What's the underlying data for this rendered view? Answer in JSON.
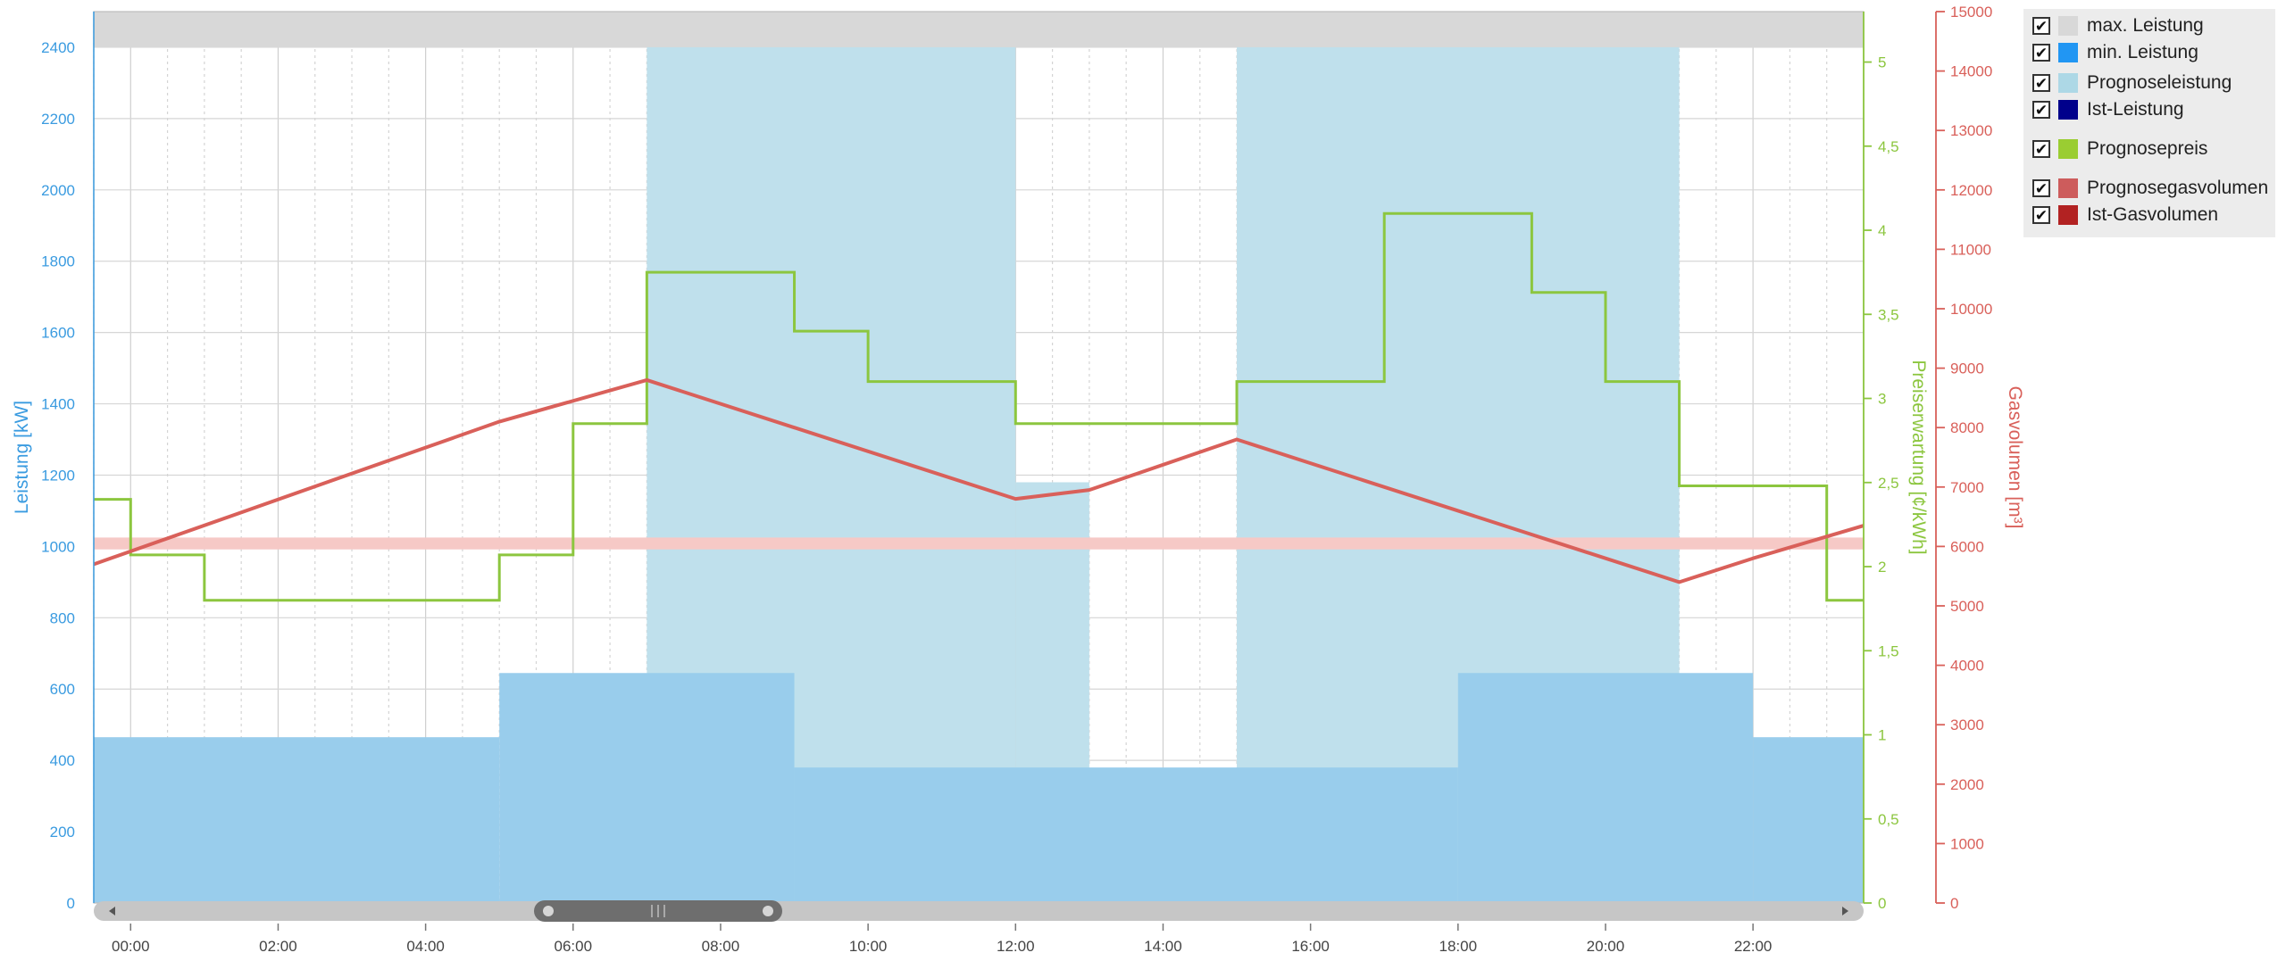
{
  "chart_data": {
    "type": "area",
    "x_ticks": [
      "00:00",
      "02:00",
      "04:00",
      "06:00",
      "08:00",
      "10:00",
      "12:00",
      "14:00",
      "16:00",
      "18:00",
      "20:00",
      "22:00"
    ],
    "x_range_hours": [
      -0.5,
      23.5
    ],
    "axes": {
      "power": {
        "label": "Leistung [kW]",
        "range": [
          0,
          2500
        ],
        "ticks": [
          "0",
          "200",
          "400",
          "600",
          "800",
          "1000",
          "1200",
          "1400",
          "1600",
          "1800",
          "2000",
          "2200",
          "2400"
        ],
        "tick_values": [
          0,
          200,
          400,
          600,
          800,
          1000,
          1200,
          1400,
          1600,
          1800,
          2000,
          2200,
          2400
        ],
        "color": "#3a9be0"
      },
      "price": {
        "label": "Preiserwartung [¢/kWh]",
        "range": [
          0,
          5.3
        ],
        "ticks": [
          "0",
          "0,5",
          "1",
          "1,5",
          "2",
          "2,5",
          "3",
          "3,5",
          "4",
          "4,5",
          "5"
        ],
        "tick_values": [
          0,
          0.5,
          1,
          1.5,
          2,
          2.5,
          3,
          3.5,
          4,
          4.5,
          5
        ],
        "color": "#8cc63f"
      },
      "gas": {
        "label": "Gasvolumen [m³]",
        "range": [
          0,
          15000
        ],
        "ticks": [
          "0",
          "1000",
          "2000",
          "3000",
          "4000",
          "5000",
          "6000",
          "7000",
          "8000",
          "9000",
          "10000",
          "11000",
          "12000",
          "13000",
          "14000",
          "15000"
        ],
        "tick_values": [
          0,
          1000,
          2000,
          3000,
          4000,
          5000,
          6000,
          7000,
          8000,
          9000,
          10000,
          11000,
          12000,
          13000,
          14000,
          15000
        ],
        "color": "#d9605a"
      }
    },
    "series": [
      {
        "name": "max. Leistung",
        "axis": "power",
        "type": "band",
        "from": 2400,
        "to": 2500,
        "color": "#d8d8d8"
      },
      {
        "name": "Prognoseleistung",
        "axis": "power",
        "type": "step-area",
        "color": "#bfe0ec",
        "segments": [
          {
            "start": -0.5,
            "end": 7,
            "value": 0
          },
          {
            "start": 7,
            "end": 12,
            "value": 2400
          },
          {
            "start": 12,
            "end": 13,
            "value": 1180
          },
          {
            "start": 13,
            "end": 15,
            "value": 0
          },
          {
            "start": 15,
            "end": 21,
            "value": 2400
          },
          {
            "start": 21,
            "end": 23.5,
            "value": 0
          }
        ]
      },
      {
        "name": "min. Leistung",
        "axis": "power",
        "type": "step-area",
        "color": "#99cdec",
        "segments": [
          {
            "start": -0.5,
            "end": 5,
            "value": 465
          },
          {
            "start": 5,
            "end": 9,
            "value": 645
          },
          {
            "start": 9,
            "end": 18,
            "value": 380
          },
          {
            "start": 18,
            "end": 22,
            "value": 645
          },
          {
            "start": 22,
            "end": 23.5,
            "value": 465
          }
        ]
      },
      {
        "name": "Prognosegasvolumen",
        "axis": "gas",
        "type": "band",
        "from": 5950,
        "to": 6150,
        "color": "#f6c9c6"
      },
      {
        "name": "Prognosepreis",
        "axis": "price",
        "type": "step-line",
        "color": "#8cc63f",
        "segments": [
          {
            "start": -0.5,
            "end": 0,
            "value": 2.4
          },
          {
            "start": 0,
            "end": 1,
            "value": 2.07
          },
          {
            "start": 1,
            "end": 5,
            "value": 1.8
          },
          {
            "start": 5,
            "end": 6,
            "value": 2.07
          },
          {
            "start": 6,
            "end": 7,
            "value": 2.85
          },
          {
            "start": 7,
            "end": 9,
            "value": 3.75
          },
          {
            "start": 9,
            "end": 10,
            "value": 3.4
          },
          {
            "start": 10,
            "end": 12,
            "value": 3.1
          },
          {
            "start": 12,
            "end": 15,
            "value": 2.85
          },
          {
            "start": 15,
            "end": 17,
            "value": 3.1
          },
          {
            "start": 17,
            "end": 19,
            "value": 4.1
          },
          {
            "start": 19,
            "end": 20,
            "value": 3.63
          },
          {
            "start": 20,
            "end": 21,
            "value": 3.1
          },
          {
            "start": 21,
            "end": 23,
            "value": 2.48
          },
          {
            "start": 23,
            "end": 23.5,
            "value": 1.8
          }
        ]
      },
      {
        "name": "Ist-Gasvolumen",
        "axis": "gas",
        "type": "line",
        "color": "#d9605a",
        "x": [
          -0.5,
          5,
          7,
          12,
          13,
          15,
          21,
          22,
          23.5
        ],
        "values": [
          5700,
          8100,
          8800,
          6800,
          6950,
          7800,
          5400,
          5800,
          6350
        ]
      }
    ],
    "legend": [
      {
        "label": "max. Leistung",
        "color": "#d8d8d8",
        "checked": true
      },
      {
        "label": "min. Leistung",
        "color": "#2196f3",
        "checked": true
      },
      {
        "label": "Prognoseleistung",
        "color": "#add8e6",
        "checked": true
      },
      {
        "label": "Ist-Leistung",
        "color": "#00008b",
        "checked": true
      },
      {
        "label": "Prognosepreis",
        "color": "#9acd32",
        "checked": true
      },
      {
        "label": "Prognosegasvolumen",
        "color": "#cd5c5c",
        "checked": true
      },
      {
        "label": "Ist-Gasvolumen",
        "color": "#b22222",
        "checked": true
      }
    ],
    "legend_placement": "top-right",
    "grid": true
  }
}
